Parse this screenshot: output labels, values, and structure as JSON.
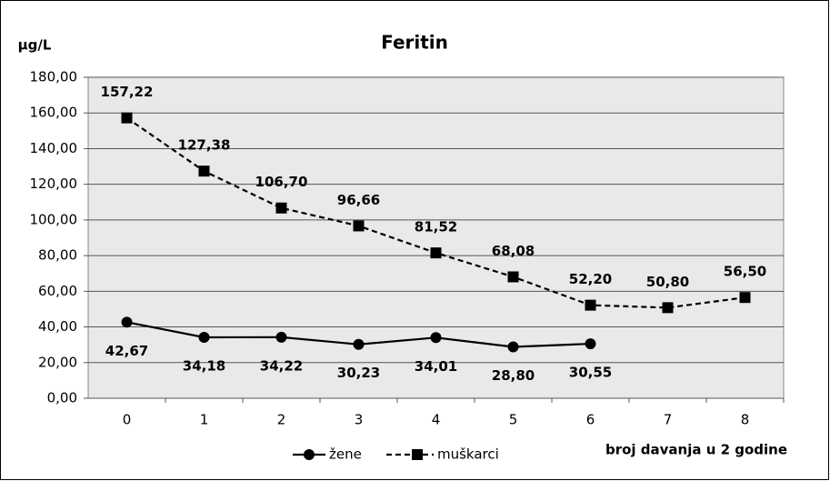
{
  "chart_data": {
    "type": "line",
    "title": "Feritin",
    "y_label": "μg/L",
    "x_label": "broj davanja u 2 godine",
    "categories": [
      "0",
      "1",
      "2",
      "3",
      "4",
      "5",
      "6",
      "7",
      "8"
    ],
    "series": [
      {
        "name": "žene",
        "color": "#000000",
        "marker": "circle",
        "dashed": false,
        "values": [
          42.67,
          34.18,
          34.22,
          30.23,
          34.01,
          28.8,
          30.55,
          null,
          null
        ],
        "value_labels": [
          "42,67",
          "34,18",
          "34,22",
          "30,23",
          "34,01",
          "28,80",
          "30,55",
          null,
          null
        ]
      },
      {
        "name": "muškarci",
        "color": "#000000",
        "marker": "square",
        "dashed": true,
        "values": [
          157.22,
          127.38,
          106.7,
          96.66,
          81.52,
          68.08,
          52.2,
          50.8,
          56.5
        ],
        "value_labels": [
          "157,22",
          "127,38",
          "106,70",
          "96,66",
          "81,52",
          "68,08",
          "52,20",
          "50,80",
          "56,50"
        ]
      }
    ],
    "ylim": [
      0,
      180
    ],
    "yticks": [
      {
        "value": 0,
        "label": "0,00"
      },
      {
        "value": 20,
        "label": "20,00"
      },
      {
        "value": 40,
        "label": "40,00"
      },
      {
        "value": 60,
        "label": "60,00"
      },
      {
        "value": 80,
        "label": "80,00"
      },
      {
        "value": 100,
        "label": "100,00"
      },
      {
        "value": 120,
        "label": "120,00"
      },
      {
        "value": 140,
        "label": "140,00"
      },
      {
        "value": 160,
        "label": "160,00"
      },
      {
        "value": 180,
        "label": "180,00"
      }
    ],
    "grid": true,
    "legend": "bottom"
  }
}
